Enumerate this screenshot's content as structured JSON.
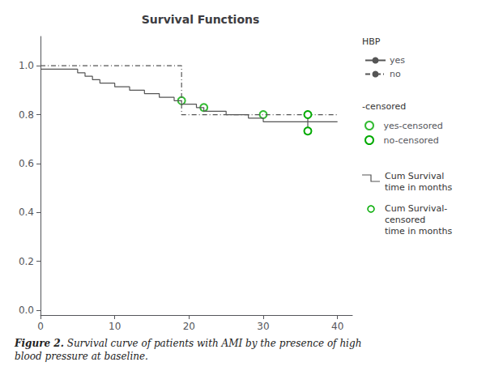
{
  "chart_data": {
    "type": "step",
    "title": "Survival Functions",
    "color": "#555555",
    "xlim": [
      0,
      42
    ],
    "ylim": [
      -0.02,
      1.12
    ],
    "xticks": [
      0,
      10,
      20,
      30,
      40
    ],
    "yticks": [
      {
        "value": 0.0,
        "label": "0.0"
      },
      0.2,
      0.4,
      0.6,
      0.8,
      {
        "value": 1.0,
        "label": "1.0"
      }
    ],
    "grid": false,
    "legend": "right",
    "series": [
      {
        "name": "yes",
        "type": "step",
        "line_style": "solid",
        "x": [
          0,
          5,
          5,
          6,
          6,
          7,
          7,
          8,
          8,
          10,
          10,
          12,
          12,
          14,
          14,
          16,
          16,
          18,
          18,
          19,
          19,
          21,
          21,
          22,
          22,
          25,
          25,
          28,
          28,
          30,
          30,
          36,
          36,
          40
        ],
        "values": [
          0.986,
          0.986,
          0.971,
          0.971,
          0.957,
          0.957,
          0.943,
          0.943,
          0.929,
          0.929,
          0.914,
          0.914,
          0.9,
          0.9,
          0.886,
          0.886,
          0.871,
          0.871,
          0.857,
          0.857,
          0.843,
          0.843,
          0.829,
          0.829,
          0.814,
          0.814,
          0.8,
          0.8,
          0.786,
          0.786,
          0.771,
          0.771,
          0.771,
          0.771
        ]
      },
      {
        "name": "no",
        "type": "step",
        "line_style": "dashdot",
        "x": [
          0,
          19,
          19,
          40
        ],
        "values": [
          1.0,
          1.0,
          0.8,
          0.8
        ]
      },
      {
        "name": "yes-censored",
        "type": "scatter",
        "color": "#00aa00",
        "marker": "open_circle",
        "x": [
          19,
          22,
          30
        ],
        "values": [
          0.857,
          0.829,
          0.8
        ]
      },
      {
        "name": "no-censored",
        "type": "line",
        "color": "#00aa00",
        "marker": "open_circle",
        "line_style": "solid",
        "x": [
          36,
          36
        ],
        "values": [
          0.8,
          0.733
        ]
      }
    ],
    "annotations": [
      "HBP",
      "-censored",
      "Cum Survival\ntime in months",
      "Cum Survival-\ncensored\ntime in months"
    ],
    "caption_label": "Figure 2.",
    "caption": "Survival curve of patients with AMI by the presence of high\nblood pressure at baseline."
  }
}
